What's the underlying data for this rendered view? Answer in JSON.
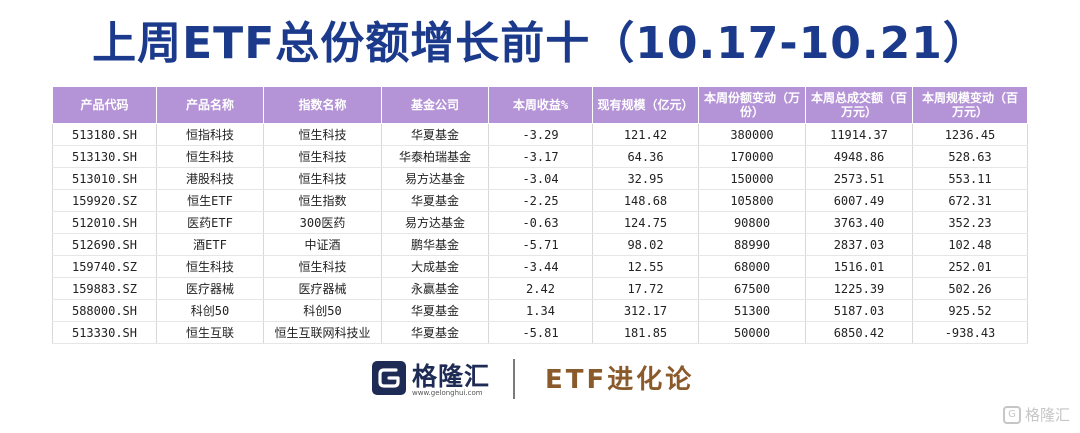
{
  "title": "上周ETF总份额增长前十（10.17-10.21）",
  "table": {
    "headers": [
      "产品代码",
      "产品名称",
      "指数名称",
      "基金公司",
      "本周收益%",
      "现有规模（亿元）",
      "本周份额变动（万份）",
      "本周总成交额（百万元）",
      "本周规模变动（百万元）"
    ],
    "rows": [
      [
        "513180.SH",
        "恒指科技",
        "恒生科技",
        "华夏基金",
        "-3.29",
        "121.42",
        "380000",
        "11914.37",
        "1236.45"
      ],
      [
        "513130.SH",
        "恒生科技",
        "恒生科技",
        "华泰柏瑞基金",
        "-3.17",
        "64.36",
        "170000",
        "4948.86",
        "528.63"
      ],
      [
        "513010.SH",
        "港股科技",
        "恒生科技",
        "易方达基金",
        "-3.04",
        "32.95",
        "150000",
        "2573.51",
        "553.11"
      ],
      [
        "159920.SZ",
        "恒生ETF",
        "恒生指数",
        "华夏基金",
        "-2.25",
        "148.68",
        "105800",
        "6007.49",
        "672.31"
      ],
      [
        "512010.SH",
        "医药ETF",
        "300医药",
        "易方达基金",
        "-0.63",
        "124.75",
        "90800",
        "3763.40",
        "352.23"
      ],
      [
        "512690.SH",
        "酒ETF",
        "中证酒",
        "鹏华基金",
        "-5.71",
        "98.02",
        "88990",
        "2837.03",
        "102.48"
      ],
      [
        "159740.SZ",
        "恒生科技",
        "恒生科技",
        "大成基金",
        "-3.44",
        "12.55",
        "68000",
        "1516.01",
        "252.01"
      ],
      [
        "159883.SZ",
        "医疗器械",
        "医疗器械",
        "永赢基金",
        "2.42",
        "17.72",
        "67500",
        "1225.39",
        "502.26"
      ],
      [
        "588000.SH",
        "科创50",
        "科创50",
        "华夏基金",
        "1.34",
        "312.17",
        "51300",
        "5187.03",
        "925.52"
      ],
      [
        "513330.SH",
        "恒生互联",
        "恒生互联网科技业",
        "华夏基金",
        "-5.81",
        "181.85",
        "50000",
        "6850.42",
        "-938.43"
      ]
    ]
  },
  "footer": {
    "logo_text": "格隆汇",
    "logo_url": "www.gelonghui.com",
    "brand2": "ETF进化论",
    "watermark": "格隆汇"
  },
  "colors": {
    "title": "#1b3a8c",
    "header_bg": "#b493d6",
    "logo": "#1e2b55",
    "brand2": "#8a5a2b"
  }
}
